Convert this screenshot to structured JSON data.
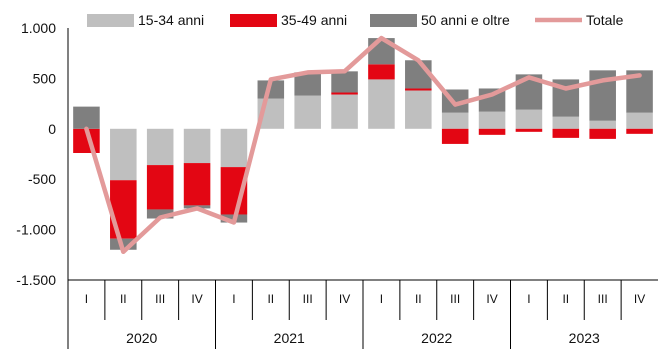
{
  "chart_data": {
    "type": "bar",
    "stacked": true,
    "title": "",
    "xlabel": "",
    "ylabel": "",
    "ylim": [
      -1500,
      1000
    ],
    "yticks": [
      1000,
      500,
      0,
      -500,
      -1000,
      -1500
    ],
    "ytick_labels": [
      "1.000",
      "500",
      "0",
      "-500",
      "-1.000",
      "-1.500"
    ],
    "years": [
      {
        "label": "2020",
        "quarters": [
          "I",
          "II",
          "III",
          "IV"
        ]
      },
      {
        "label": "2021",
        "quarters": [
          "I",
          "II",
          "III",
          "IV"
        ]
      },
      {
        "label": "2022",
        "quarters": [
          "I",
          "II",
          "III",
          "IV"
        ]
      },
      {
        "label": "2023",
        "quarters": [
          "I",
          "II",
          "III",
          "IV"
        ]
      }
    ],
    "legend_position": "top",
    "series": [
      {
        "name": "15-34 anni",
        "kind": "bar",
        "color": "#bfbfbf",
        "values": [
          0,
          -510,
          -360,
          -340,
          -380,
          300,
          330,
          340,
          490,
          380,
          160,
          170,
          190,
          120,
          80,
          160
        ]
      },
      {
        "name": "35-49 anni",
        "kind": "bar",
        "color": "#e30613",
        "values": [
          -240,
          -580,
          -440,
          -420,
          -470,
          0,
          0,
          20,
          150,
          20,
          -150,
          -60,
          -30,
          -90,
          -100,
          -50
        ]
      },
      {
        "name": "50 anni e oltre",
        "kind": "bar",
        "color": "#7f7f7f",
        "values": [
          220,
          -110,
          -90,
          -30,
          -80,
          180,
          230,
          210,
          260,
          280,
          230,
          230,
          350,
          370,
          500,
          420
        ]
      },
      {
        "name": "Totale",
        "kind": "line",
        "color": "#e39a9a",
        "values": [
          0,
          -1220,
          -880,
          -790,
          -930,
          490,
          560,
          570,
          900,
          680,
          240,
          340,
          510,
          400,
          480,
          530
        ]
      }
    ]
  }
}
